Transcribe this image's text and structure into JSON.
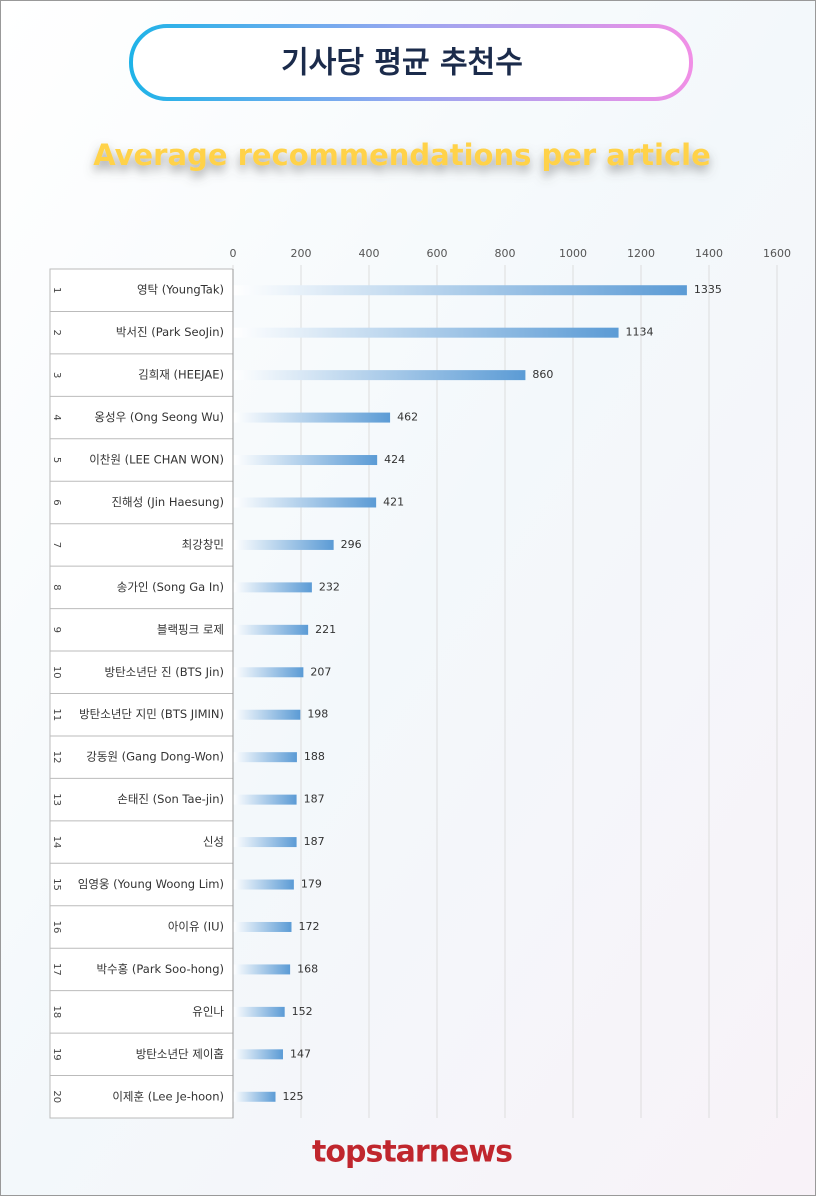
{
  "chart_data": {
    "type": "barh",
    "title": "기사당 평균 추천수",
    "subtitle": "Average recommendations per article",
    "ranks": [
      1,
      2,
      3,
      4,
      5,
      6,
      7,
      8,
      9,
      10,
      11,
      12,
      13,
      14,
      15,
      16,
      17,
      18,
      19,
      20
    ],
    "categories": [
      "영탁 (YoungTak)",
      "박서진 (Park SeoJin)",
      "김희재 (HEEJAE)",
      "옹성우 (Ong Seong Wu)",
      "이찬원 (LEE CHAN WON)",
      "진해성 (Jin Haesung)",
      "최강창민",
      "송가인 (Song Ga In)",
      "블랙핑크 로제",
      "방탄소년단 진 (BTS Jin)",
      "방탄소년단 지민 (BTS JIMIN)",
      "강동원 (Gang Dong-Won)",
      "손태진 (Son Tae-jin)",
      "신성",
      "임영웅 (Young Woong Lim)",
      "아이유 (IU)",
      "박수홍 (Park Soo-hong)",
      "유인나",
      "방탄소년단 제이홉",
      "이제훈 (Lee Je-hoon)"
    ],
    "values": [
      1335,
      1134,
      860,
      462,
      424,
      421,
      296,
      232,
      221,
      207,
      198,
      188,
      187,
      187,
      179,
      172,
      168,
      152,
      147,
      125
    ],
    "color": "#5b9bd5",
    "xlim": [
      0,
      1600
    ],
    "xticks": [
      0,
      200,
      400,
      600,
      800,
      1000,
      1200,
      1400,
      1600
    ],
    "grid": true,
    "brand": "topstarnews"
  }
}
